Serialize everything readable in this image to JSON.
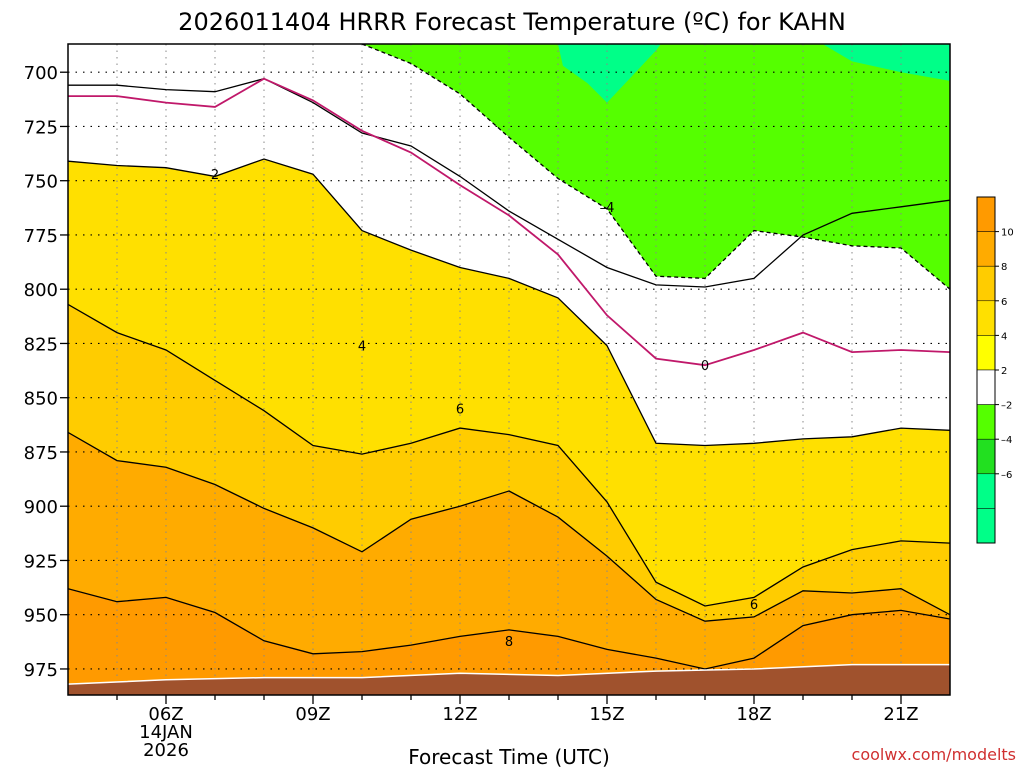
{
  "colors": {
    "ground": "#a0522d",
    "freezing_line": "#c0186a",
    "iso_line": "#000000",
    "bands": {
      "-6": "#00ff88",
      "-4": "#22e020",
      "-2": "#55ff00",
      "0": "#ffffff",
      "2": "#ffff00",
      "4": "#ffe000",
      "6": "#ffcc00",
      "8": "#ffab00",
      "10": "#ff9a00",
      "12": "#ff8500"
    }
  },
  "chart_data": {
    "type": "heatmap",
    "title": "2026011404 HRRR Forecast Temperature (ºC) for KAHN",
    "xlabel": "Forecast Time (UTC)",
    "ylabel": "",
    "credit": "coolwx.com/modelts",
    "x_ticks": [
      {
        "hour": 6,
        "label": "06Z",
        "date": "14JAN",
        "year": "2026"
      },
      {
        "hour": 9,
        "label": "09Z"
      },
      {
        "hour": 12,
        "label": "12Z"
      },
      {
        "hour": 15,
        "label": "15Z"
      },
      {
        "hour": 18,
        "label": "18Z"
      },
      {
        "hour": 21,
        "label": "21Z"
      }
    ],
    "xlim_hours": [
      4,
      22
    ],
    "y_ticks": [
      700,
      725,
      750,
      775,
      800,
      825,
      850,
      875,
      900,
      925,
      950,
      975
    ],
    "ylim_hpa": [
      987,
      687
    ],
    "grid": true,
    "colorbar": {
      "levels": [
        12,
        10,
        8,
        6,
        4,
        2,
        0,
        -2,
        -4,
        -6,
        -8
      ],
      "tick_labels": [
        "10",
        "8",
        "6",
        "4",
        "2",
        "–2",
        "–4",
        "–6"
      ]
    },
    "isotherms": [
      {
        "value": 4,
        "label": "4",
        "dashed": false,
        "points": [
          [
            4,
            706
          ],
          [
            5,
            706
          ],
          [
            6,
            708
          ],
          [
            7,
            709
          ],
          [
            8,
            703
          ],
          [
            9,
            714
          ],
          [
            10,
            728
          ],
          [
            11,
            734
          ],
          [
            12,
            748
          ],
          [
            13,
            764
          ],
          [
            14,
            777
          ],
          [
            15,
            790
          ],
          [
            16,
            798
          ],
          [
            17,
            799
          ],
          [
            18,
            795
          ],
          [
            19,
            775
          ],
          [
            20,
            765
          ],
          [
            21,
            762
          ],
          [
            22,
            759
          ]
        ]
      },
      {
        "value": 2,
        "label": "2",
        "dashed": false,
        "points": [
          [
            4,
            741
          ],
          [
            5,
            743
          ],
          [
            6,
            744
          ],
          [
            7,
            748
          ],
          [
            8,
            740
          ],
          [
            9,
            747
          ],
          [
            10,
            773
          ],
          [
            11,
            782
          ],
          [
            12,
            790
          ],
          [
            13,
            795
          ],
          [
            14,
            804
          ],
          [
            15,
            826
          ],
          [
            16,
            871
          ],
          [
            17,
            872
          ],
          [
            18,
            871
          ],
          [
            19,
            869
          ],
          [
            20,
            868
          ],
          [
            21,
            864
          ],
          [
            22,
            865
          ]
        ]
      },
      {
        "value": 0,
        "label": "0",
        "dashed": false,
        "color": "freezing_line",
        "points": [
          [
            4,
            711
          ],
          [
            5,
            711
          ],
          [
            6,
            714
          ],
          [
            7,
            716
          ],
          [
            8,
            703
          ],
          [
            9,
            713
          ],
          [
            10,
            727
          ],
          [
            11,
            737
          ],
          [
            12,
            752
          ],
          [
            13,
            766
          ],
          [
            14,
            784
          ],
          [
            15,
            812
          ],
          [
            16,
            832
          ],
          [
            17,
            835
          ],
          [
            18,
            828
          ],
          [
            19,
            820
          ],
          [
            20,
            829
          ],
          [
            21,
            828
          ],
          [
            22,
            829
          ]
        ]
      },
      {
        "value": -4,
        "label": "–4",
        "dashed": true,
        "points": [
          [
            10,
            687
          ],
          [
            11,
            696
          ],
          [
            12,
            710
          ],
          [
            13,
            730
          ],
          [
            14,
            749
          ],
          [
            15,
            763
          ],
          [
            16,
            794
          ],
          [
            17,
            795
          ],
          [
            18,
            773
          ],
          [
            19,
            776
          ],
          [
            20,
            780
          ],
          [
            21,
            781
          ],
          [
            22,
            800
          ]
        ]
      },
      {
        "value": 6,
        "label": "6",
        "dashed": false,
        "points": [
          [
            4,
            807
          ],
          [
            5,
            820
          ],
          [
            6,
            828
          ],
          [
            7,
            842
          ],
          [
            8,
            856
          ],
          [
            9,
            872
          ],
          [
            10,
            876
          ],
          [
            11,
            871
          ],
          [
            12,
            864
          ],
          [
            13,
            867
          ],
          [
            14,
            872
          ],
          [
            15,
            898
          ],
          [
            16,
            935
          ],
          [
            17,
            946
          ],
          [
            18,
            942
          ],
          [
            19,
            928
          ],
          [
            20,
            920
          ],
          [
            21,
            916
          ],
          [
            22,
            917
          ]
        ]
      },
      {
        "value": 8,
        "label": "8",
        "dashed": false,
        "points": [
          [
            4,
            866
          ],
          [
            5,
            879
          ],
          [
            6,
            882
          ],
          [
            7,
            890
          ],
          [
            8,
            901
          ],
          [
            9,
            910
          ],
          [
            10,
            921
          ],
          [
            11,
            906
          ],
          [
            12,
            900
          ],
          [
            13,
            893
          ],
          [
            14,
            905
          ],
          [
            15,
            923
          ],
          [
            16,
            943
          ],
          [
            17,
            953
          ],
          [
            18,
            951
          ],
          [
            19,
            939
          ],
          [
            20,
            940
          ],
          [
            21,
            938
          ],
          [
            22,
            950
          ]
        ]
      },
      {
        "value": 10,
        "label": "",
        "dashed": false,
        "points": [
          [
            4,
            938
          ],
          [
            5,
            944
          ],
          [
            6,
            942
          ],
          [
            7,
            949
          ],
          [
            8,
            962
          ],
          [
            9,
            968
          ],
          [
            10,
            967
          ],
          [
            11,
            964
          ],
          [
            12,
            960
          ],
          [
            13,
            957
          ],
          [
            14,
            960
          ],
          [
            15,
            966
          ],
          [
            16,
            970
          ],
          [
            17,
            975
          ],
          [
            18,
            970
          ],
          [
            19,
            955
          ],
          [
            20,
            950
          ],
          [
            21,
            948
          ],
          [
            22,
            952
          ]
        ]
      }
    ],
    "contour_labels": [
      {
        "text": "2",
        "x": 7,
        "y": 747
      },
      {
        "text": "4",
        "x": 10,
        "y": 826
      },
      {
        "text": "6",
        "x": 12,
        "y": 855
      },
      {
        "text": "0",
        "x": 17,
        "y": 835
      },
      {
        "text": "–4",
        "x": 15,
        "y": 762
      },
      {
        "text": "8",
        "x": 13,
        "y": 962
      },
      {
        "text": "6",
        "x": 18,
        "y": 945
      }
    ],
    "surface_pressure_hpa": [
      {
        "hour": 4,
        "p": 982
      },
      {
        "hour": 6,
        "p": 980
      },
      {
        "hour": 8,
        "p": 979
      },
      {
        "hour": 10,
        "p": 979
      },
      {
        "hour": 12,
        "p": 977
      },
      {
        "hour": 14,
        "p": 978
      },
      {
        "hour": 16,
        "p": 976
      },
      {
        "hour": 18,
        "p": 975
      },
      {
        "hour": 20,
        "p": 973
      },
      {
        "hour": 22,
        "p": 973
      }
    ]
  }
}
